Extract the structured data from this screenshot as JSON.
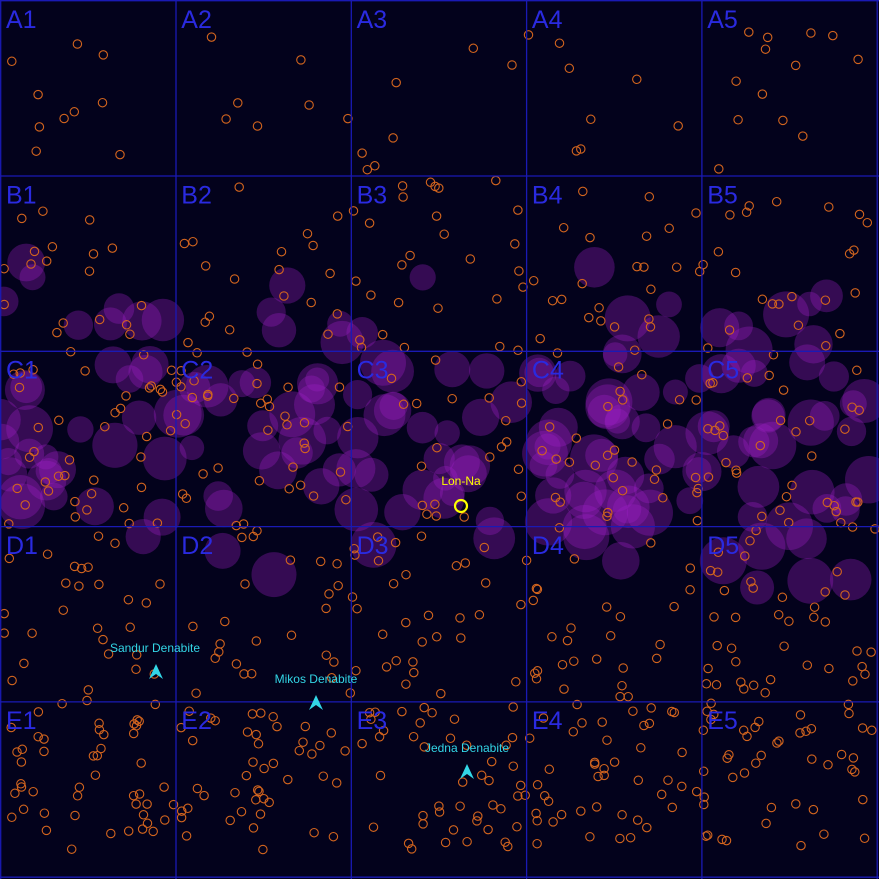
{
  "colors": {
    "background": "#03021c",
    "grid": "#1a1ab4",
    "cell_label": "#2a2ae0",
    "star": "#d2641e",
    "nebula": "#a020c8",
    "station": "#ffff00",
    "denabite": "#33d6e6"
  },
  "grid": {
    "rows": [
      "A",
      "B",
      "C",
      "D",
      "E"
    ],
    "cols": [
      "1",
      "2",
      "3",
      "4",
      "5"
    ],
    "cell_labels": [
      "A1",
      "A2",
      "A3",
      "A4",
      "A5",
      "B1",
      "B2",
      "B3",
      "B4",
      "B5",
      "C1",
      "C2",
      "C3",
      "C4",
      "C5",
      "D1",
      "D2",
      "D3",
      "D4",
      "D5",
      "E1",
      "E2",
      "E3",
      "E4",
      "E5"
    ]
  },
  "points_of_interest": [
    {
      "name": "Lon-Na",
      "kind": "station",
      "icon": "ring-icon"
    },
    {
      "name": "Sandur Denabite",
      "kind": "denabite",
      "icon": "arrow-marker-icon"
    },
    {
      "name": "Mikos Denabite",
      "kind": "denabite",
      "icon": "arrow-marker-icon"
    },
    {
      "name": "Jedna Denabite",
      "kind": "denabite",
      "icon": "arrow-marker-icon"
    }
  ]
}
